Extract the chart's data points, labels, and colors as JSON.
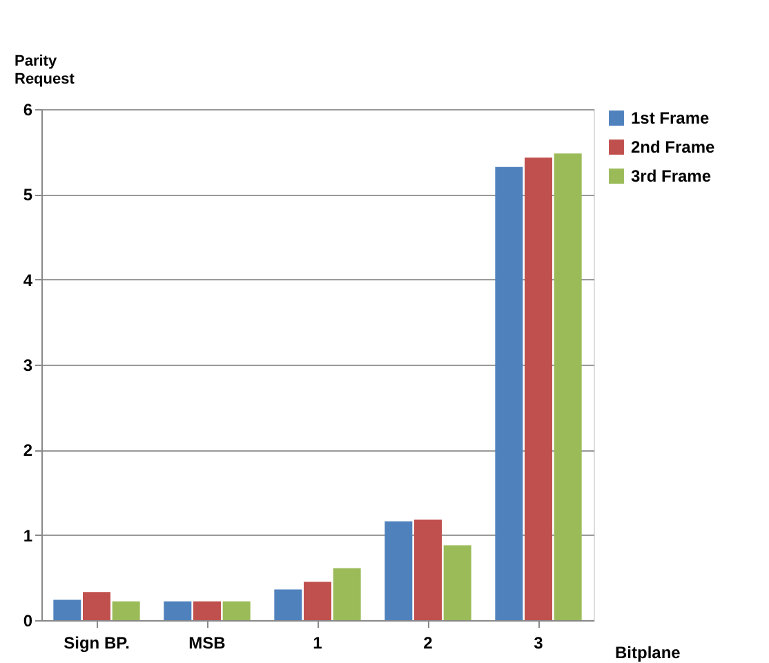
{
  "chart_data": {
    "type": "bar",
    "xlabel": "Bitplane",
    "ylabel": "Parity\nRequest",
    "categories": [
      "Sign BP.",
      "MSB",
      "1",
      "2",
      "3"
    ],
    "series": [
      {
        "name": "1st Frame",
        "color": "#4f81bd",
        "values": [
          0.24,
          0.22,
          0.36,
          1.16,
          5.32
        ]
      },
      {
        "name": "2nd Frame",
        "color": "#c0504d",
        "values": [
          0.33,
          0.22,
          0.45,
          1.18,
          5.43
        ]
      },
      {
        "name": "3rd Frame",
        "color": "#9bbb59",
        "values": [
          0.22,
          0.22,
          0.61,
          0.88,
          5.48
        ]
      }
    ],
    "ylim": [
      0,
      6
    ],
    "yticks": [
      0,
      1,
      2,
      3,
      4,
      5,
      6
    ],
    "grid": "y",
    "legend": "right"
  }
}
